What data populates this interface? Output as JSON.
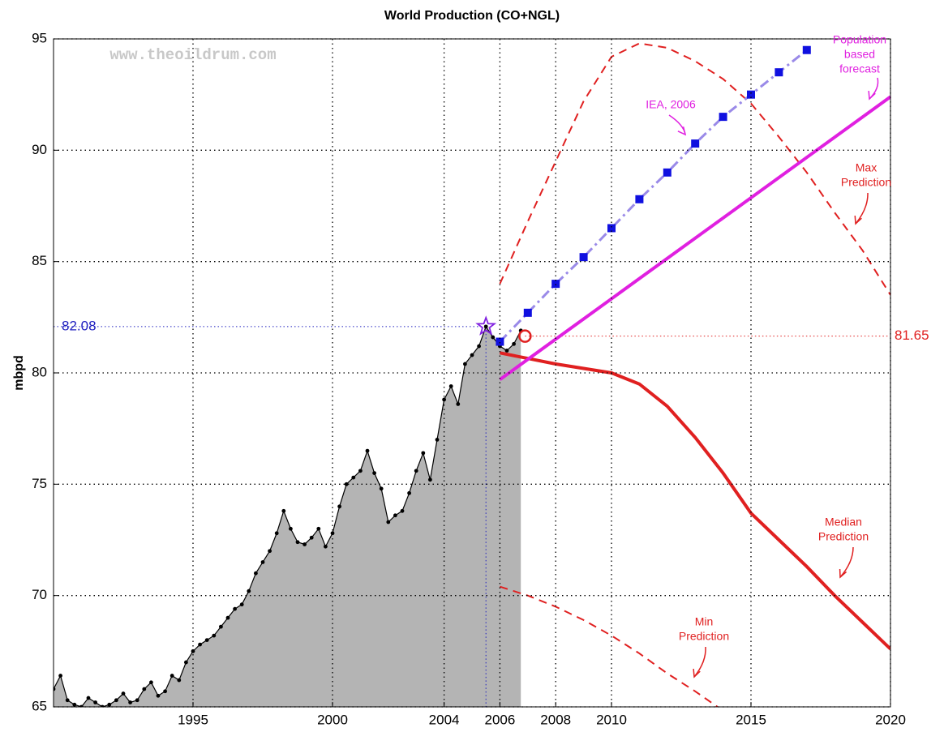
{
  "chart_data": {
    "type": "line",
    "title": "World Production (CO+NGL)",
    "ylabel": "mbpd",
    "watermark": "www.theoildrum.com",
    "xlim": [
      1990,
      2020
    ],
    "ylim": [
      65,
      95
    ],
    "xticks": [
      1995,
      2000,
      2004,
      2006,
      2008,
      2010,
      2015,
      2020
    ],
    "yticks": [
      65,
      70,
      75,
      80,
      85,
      90,
      95
    ],
    "grid": true,
    "series": [
      {
        "name": "Production",
        "color": "#000000",
        "fill": "#b4b4b4",
        "style": "markers",
        "x": [
          1990,
          1990.25,
          1990.5,
          1990.75,
          1991,
          1991.25,
          1991.5,
          1991.75,
          1992,
          1992.25,
          1992.5,
          1992.75,
          1993,
          1993.25,
          1993.5,
          1993.75,
          1994,
          1994.25,
          1994.5,
          1994.75,
          1995,
          1995.25,
          1995.5,
          1995.75,
          1996,
          1996.25,
          1996.5,
          1996.75,
          1997,
          1997.25,
          1997.5,
          1997.75,
          1998,
          1998.25,
          1998.5,
          1998.75,
          1999,
          1999.25,
          1999.5,
          1999.75,
          2000,
          2000.25,
          2000.5,
          2000.75,
          2001,
          2001.25,
          2001.5,
          2001.75,
          2002,
          2002.25,
          2002.5,
          2002.75,
          2003,
          2003.25,
          2003.5,
          2003.75,
          2004,
          2004.25,
          2004.5,
          2004.75,
          2005,
          2005.25,
          2005.5,
          2005.75,
          2006,
          2006.25,
          2006.5,
          2006.75
        ],
        "values": [
          65.8,
          66.4,
          65.3,
          65.1,
          65.0,
          65.4,
          65.2,
          65.0,
          65.1,
          65.3,
          65.6,
          65.2,
          65.3,
          65.8,
          66.1,
          65.5,
          65.7,
          66.4,
          66.2,
          67.0,
          67.5,
          67.8,
          68.0,
          68.2,
          68.6,
          69.0,
          69.4,
          69.6,
          70.2,
          71.0,
          71.5,
          72.0,
          72.8,
          73.8,
          73.0,
          72.4,
          72.3,
          72.6,
          73.0,
          72.2,
          72.8,
          74.0,
          75.0,
          75.3,
          75.6,
          76.5,
          75.5,
          74.8,
          73.3,
          73.6,
          73.8,
          74.6,
          75.6,
          76.4,
          75.2,
          77.0,
          78.8,
          79.4,
          78.6,
          80.4,
          80.8,
          81.2,
          82.08,
          81.6,
          81.2,
          81.0,
          81.3,
          81.9
        ]
      },
      {
        "name": "Max Prediction",
        "color": "#e02020",
        "style": "dashed",
        "x": [
          2006,
          2007,
          2008,
          2009,
          2010,
          2011,
          2012,
          2013,
          2014,
          2015,
          2016,
          2017,
          2018,
          2019,
          2020
        ],
        "values": [
          84,
          86.8,
          89.5,
          92.2,
          94.2,
          94.8,
          94.6,
          94,
          93.2,
          92.1,
          90.6,
          89,
          87.2,
          85.5,
          83.5
        ]
      },
      {
        "name": "Min Prediction",
        "color": "#e02020",
        "style": "dashed",
        "x": [
          2006,
          2007,
          2008,
          2009,
          2010,
          2011,
          2012,
          2013,
          2013.8
        ],
        "values": [
          70.4,
          70,
          69.5,
          68.9,
          68.2,
          67.4,
          66.5,
          65.7,
          65
        ]
      },
      {
        "name": "Median Prediction",
        "color": "#e02020",
        "style": "solid",
        "x": [
          2006,
          2008,
          2010,
          2011,
          2012,
          2013,
          2014,
          2015,
          2016,
          2017,
          2018,
          2019,
          2020
        ],
        "values": [
          80.9,
          80.4,
          80,
          79.5,
          78.5,
          77.1,
          75.5,
          73.7,
          72.5,
          71.3,
          70,
          68.8,
          67.6
        ]
      },
      {
        "name": "IEA, 2006",
        "color": "#1010e0",
        "line_color": "#9a8ae8",
        "style": "squares",
        "x": [
          2006,
          2007,
          2008,
          2009,
          2010,
          2011,
          2012,
          2013,
          2014,
          2015,
          2016,
          2017
        ],
        "values": [
          81.4,
          82.7,
          84,
          85.2,
          86.5,
          87.8,
          89,
          90.3,
          91.5,
          92.5,
          93.5,
          94.5
        ]
      },
      {
        "name": "Population based forecast",
        "color": "#e020e0",
        "style": "solid",
        "x": [
          2006,
          2020
        ],
        "values": [
          79.7,
          92.4
        ]
      }
    ],
    "reference_lines": [
      {
        "value": 82.08,
        "x": 2005.5,
        "color": "#2020c0",
        "side": "left",
        "marker": "star"
      },
      {
        "value": 81.65,
        "x": 2006.9,
        "color": "#e02020",
        "side": "right",
        "marker": "circle"
      }
    ],
    "annotations": [
      {
        "lines": [
          "Population",
          "based",
          "forecast"
        ],
        "color": "#e020e0"
      },
      {
        "lines": [
          "IEA, 2006"
        ],
        "color": "#e020e0"
      },
      {
        "lines": [
          "Max",
          "Prediction"
        ],
        "color": "#e02020"
      },
      {
        "lines": [
          "Median",
          "Prediction"
        ],
        "color": "#e02020"
      },
      {
        "lines": [
          "Min",
          "Prediction"
        ],
        "color": "#e02020"
      }
    ]
  }
}
